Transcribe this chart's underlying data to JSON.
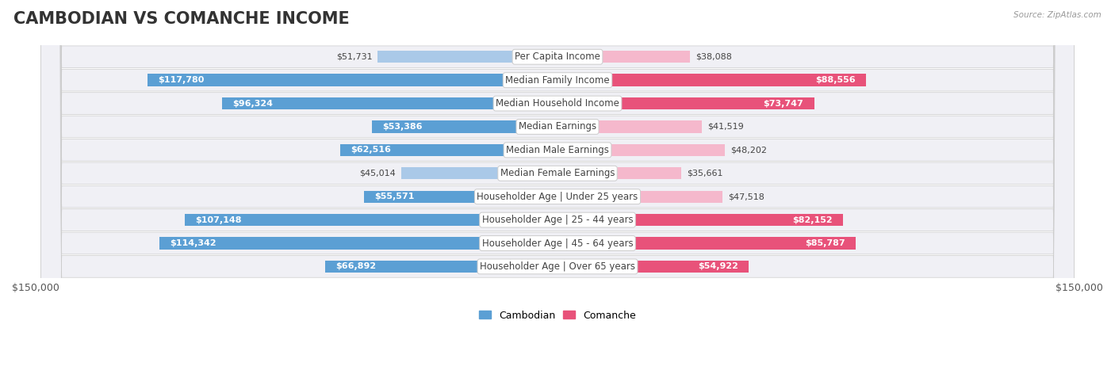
{
  "title": "CAMBODIAN VS COMANCHE INCOME",
  "source": "Source: ZipAtlas.com",
  "max_value": 150000,
  "categories": [
    "Per Capita Income",
    "Median Family Income",
    "Median Household Income",
    "Median Earnings",
    "Median Male Earnings",
    "Median Female Earnings",
    "Householder Age | Under 25 years",
    "Householder Age | 25 - 44 years",
    "Householder Age | 45 - 64 years",
    "Householder Age | Over 65 years"
  ],
  "cambodian_values": [
    51731,
    117780,
    96324,
    53386,
    62516,
    45014,
    55571,
    107148,
    114342,
    66892
  ],
  "comanche_values": [
    38088,
    88556,
    73747,
    41519,
    48202,
    35661,
    47518,
    82152,
    85787,
    54922
  ],
  "cambodian_color_light": "#aac9e8",
  "cambodian_color_dark": "#5b9fd4",
  "comanche_color_light": "#f5b8cc",
  "comanche_color_dark": "#e8527a",
  "cambodian_label": "Cambodian",
  "comanche_label": "Comanche",
  "bar_height": 0.52,
  "row_bg_color": "#f0f0f5",
  "label_bg_color": "#ffffff",
  "label_border_color": "#dddddd",
  "axis_label_left": "$150,000",
  "axis_label_right": "$150,000",
  "title_fontsize": 15,
  "label_fontsize": 8.5,
  "value_fontsize": 8,
  "axis_tick_fontsize": 9,
  "inside_threshold": 0.35
}
